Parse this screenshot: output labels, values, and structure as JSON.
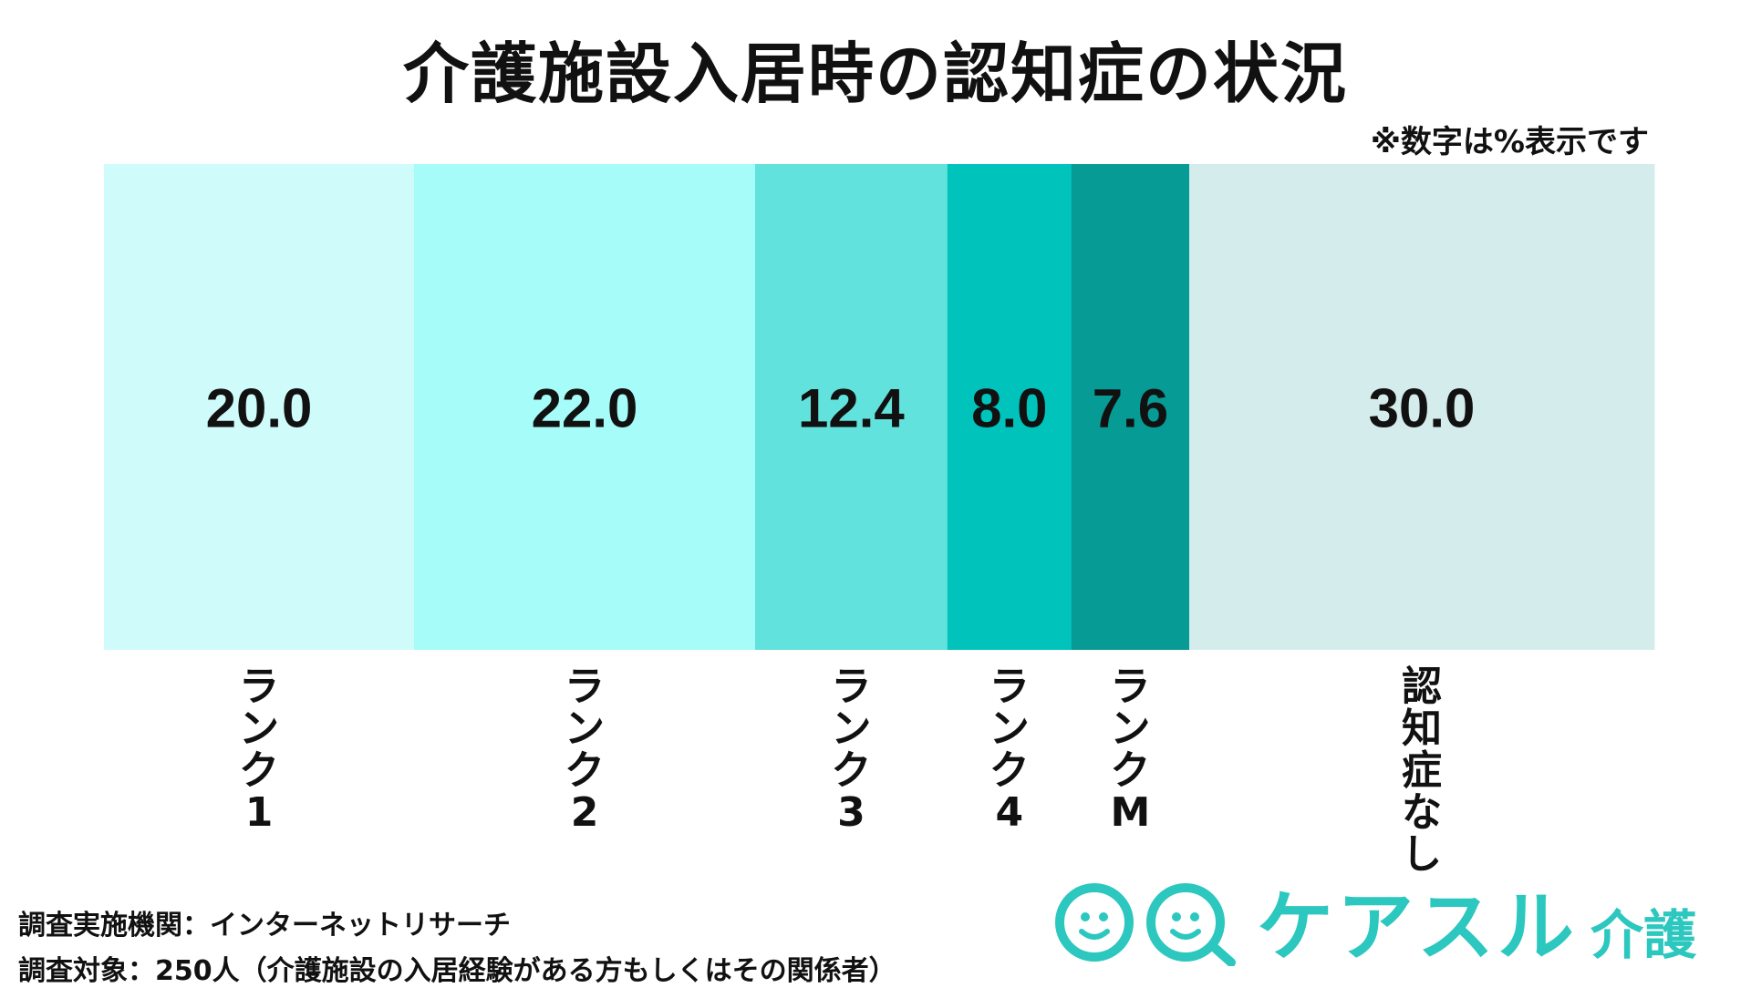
{
  "header": {
    "title": "介護施設入居時の認知症の状況",
    "note": "※数字は%表示です"
  },
  "chart_data": {
    "type": "bar",
    "orientation": "stacked-horizontal-100",
    "title": "介護施設入居時の認知症の状況",
    "unit": "%",
    "categories": [
      "ランク1",
      "ランク2",
      "ランク3",
      "ランク4",
      "ランクM",
      "認知症なし"
    ],
    "values": [
      20.0,
      22.0,
      12.4,
      8.0,
      7.6,
      30.0
    ],
    "value_labels": [
      "20.0",
      "22.0",
      "12.4",
      "8.0",
      "7.6",
      "30.0"
    ],
    "colors": [
      "#cffcfb",
      "#a6fcf9",
      "#62e2dc",
      "#00c4bc",
      "#079b95",
      "#d4ecec"
    ],
    "grid": false,
    "legend": "none"
  },
  "footer": {
    "line1": "調査実施機関：インターネットリサーチ",
    "line2": "調査対象：250人（介護施設の入居経験がある方もしくはその関係者）"
  },
  "logo": {
    "text": "ケアスル",
    "sub": "介護",
    "color": "#2cc7bf",
    "icon": "smiley-faces-icon"
  }
}
